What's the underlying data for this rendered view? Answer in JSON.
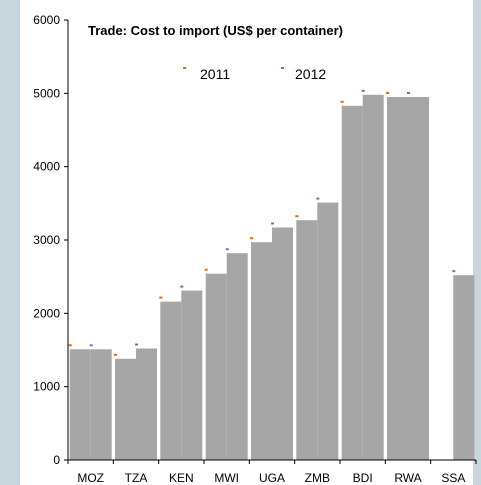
{
  "chart_data": {
    "type": "bar",
    "title": "Trade: Cost to import (US$ per container)",
    "categories": [
      "MOZ",
      "TZA",
      "KEN",
      "MWI",
      "UGA",
      "ZMB",
      "BDI",
      "RWA",
      "SSA"
    ],
    "series": [
      {
        "name": "2011",
        "values": [
          1510,
          1380,
          2160,
          2540,
          2970,
          3270,
          4830,
          4950,
          null
        ],
        "color": "#a6a6a6",
        "marker_color": "#e36c09"
      },
      {
        "name": "2012",
        "values": [
          1510,
          1520,
          2310,
          2820,
          3170,
          3510,
          4980,
          4950,
          2520
        ],
        "color": "#a6a6a6",
        "marker_color": "#4f81bd"
      }
    ],
    "ylim": [
      0,
      6000
    ],
    "yticks": [
      0,
      1000,
      2000,
      3000,
      4000,
      5000,
      6000
    ],
    "ytick_labels": [
      "0",
      "1000",
      "2000",
      "3000",
      "4000",
      "5000",
      "6000"
    ],
    "xlabel": "",
    "ylabel": "",
    "legend_position": "top",
    "grid": false
  }
}
